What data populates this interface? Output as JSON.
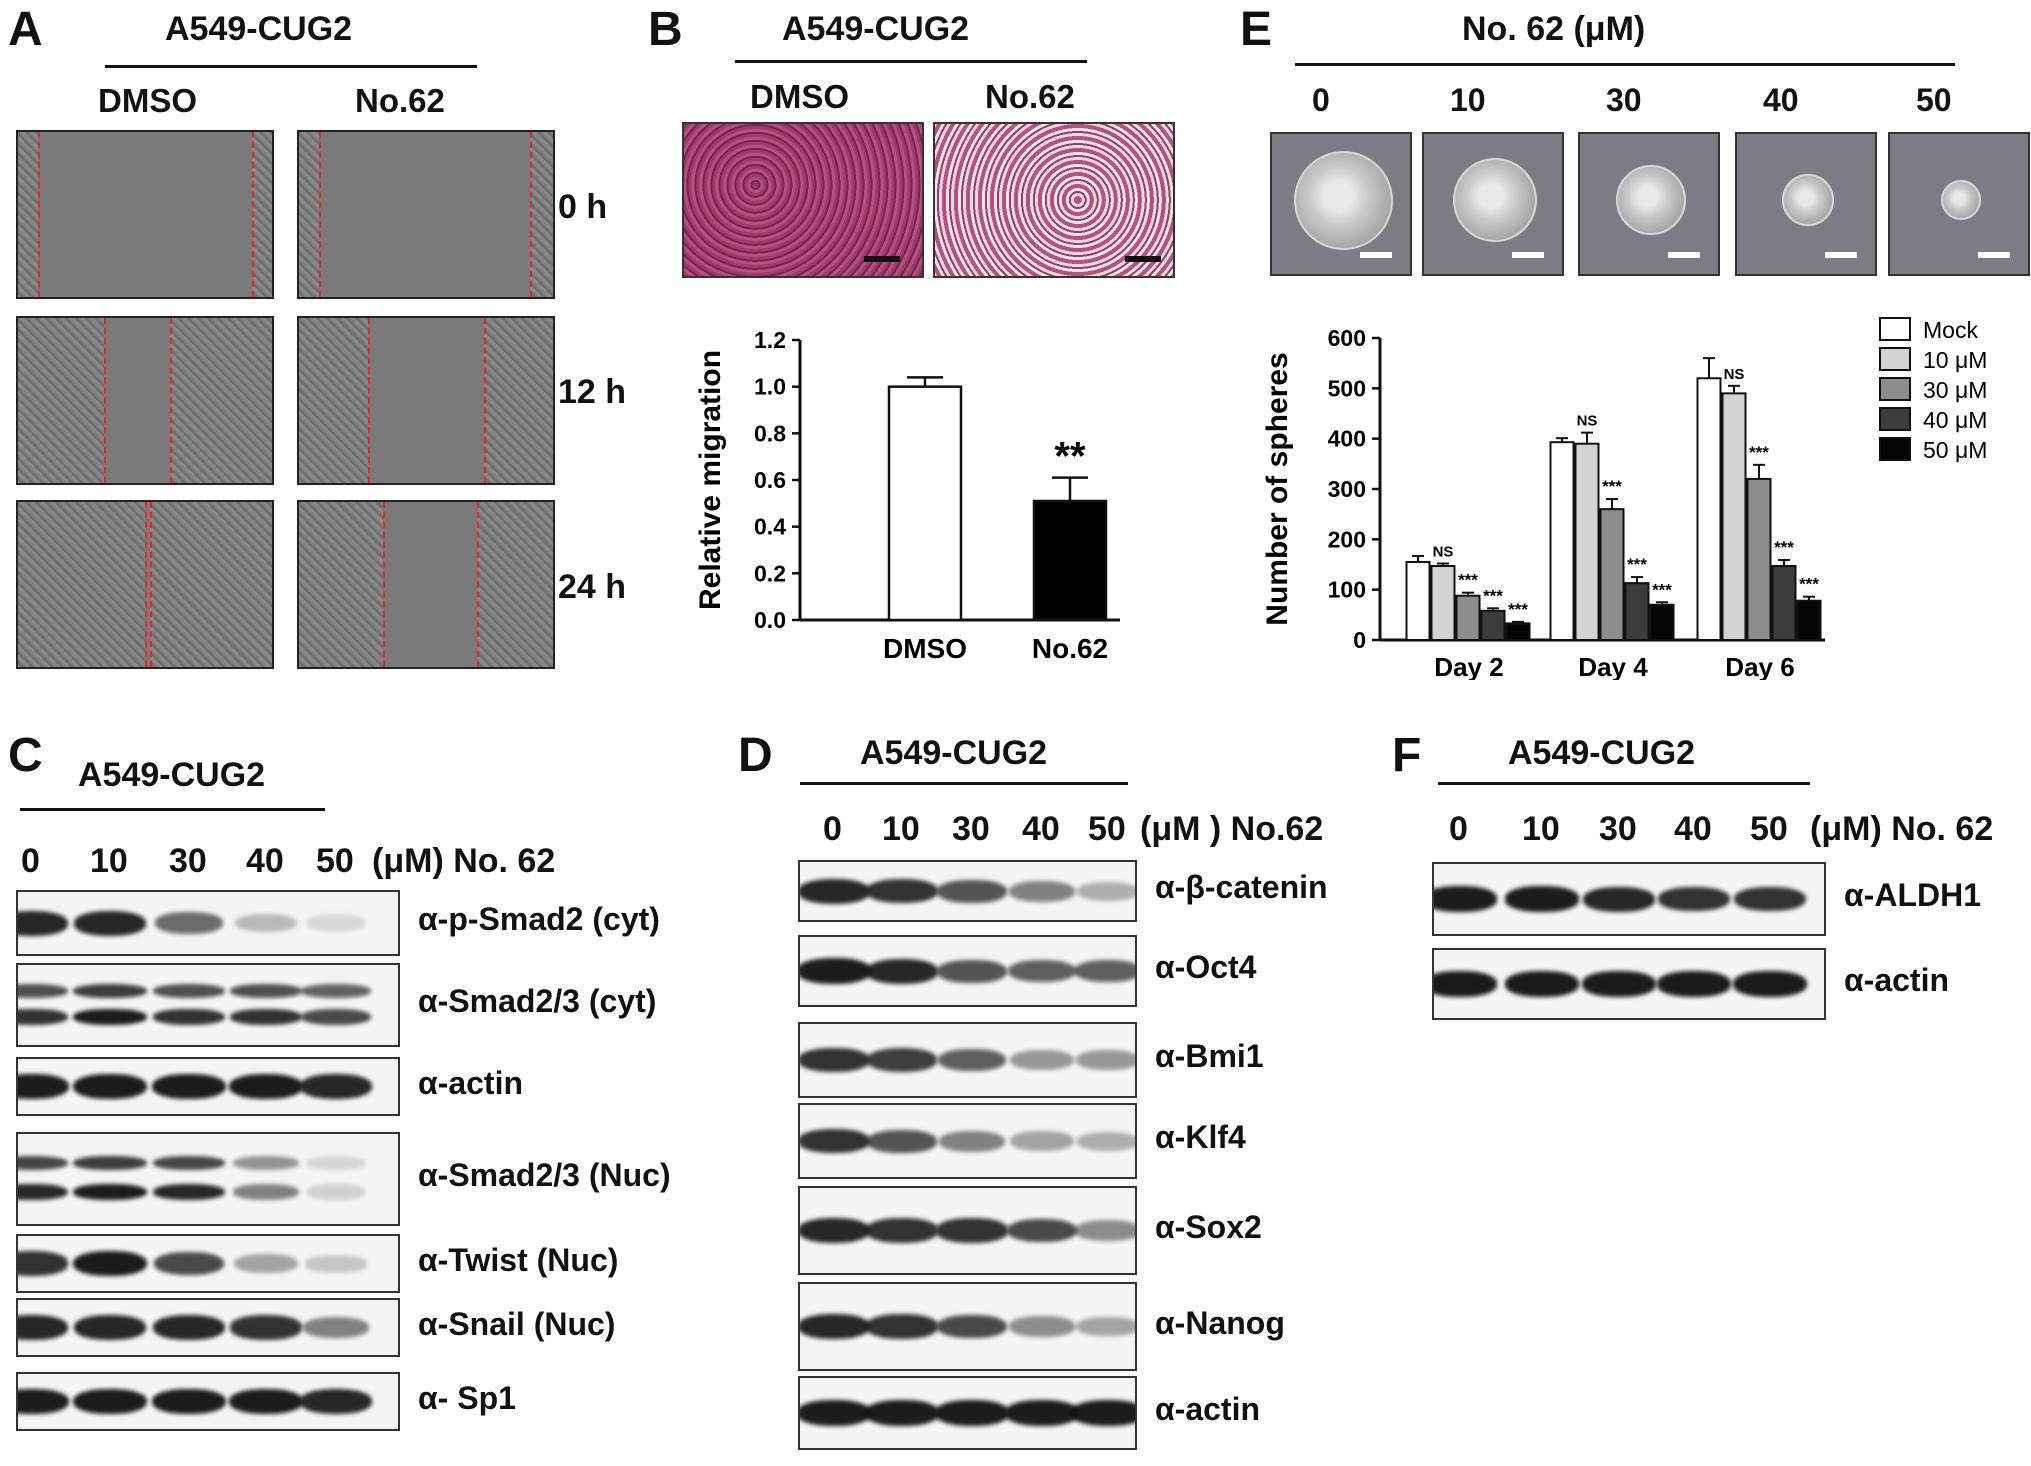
{
  "panels": {
    "A": {
      "letter": "A",
      "header": "A549-CUG2",
      "columns": [
        "DMSO",
        "No.62"
      ],
      "timepoints": [
        "0 h",
        "12 h",
        "24 h"
      ]
    },
    "B": {
      "letter": "B",
      "header": "A549-CUG2",
      "columns": [
        "DMSO",
        "No.62"
      ],
      "significance": "**"
    },
    "C": {
      "letter": "C",
      "header": "A549-CUG2",
      "doses": [
        "0",
        "10",
        "30",
        "40",
        "50"
      ],
      "unit_label": "(μM) No. 62",
      "blots": [
        {
          "label": "α-p-Smad2 (cyt)",
          "intensity": [
            0.9,
            0.9,
            0.6,
            0.25,
            0.12
          ]
        },
        {
          "label": "α-Smad2/3 (cyt)",
          "intensity": [
            0.85,
            0.95,
            0.85,
            0.85,
            0.75
          ]
        },
        {
          "label": "α-actin",
          "intensity": [
            0.95,
            0.95,
            0.95,
            0.95,
            0.9
          ]
        },
        {
          "label": "α-Smad2/3 (Nuc)",
          "intensity": [
            0.9,
            0.95,
            0.9,
            0.5,
            0.15
          ]
        },
        {
          "label": "α-Twist (Nuc)",
          "intensity": [
            0.85,
            0.95,
            0.75,
            0.35,
            0.2
          ]
        },
        {
          "label": "α-Snail (Nuc)",
          "intensity": [
            0.9,
            0.9,
            0.9,
            0.85,
            0.5
          ]
        },
        {
          "label": "α- Sp1",
          "intensity": [
            0.95,
            0.95,
            0.95,
            0.95,
            0.9
          ]
        }
      ]
    },
    "D": {
      "letter": "D",
      "header": "A549-CUG2",
      "doses": [
        "0",
        "10",
        "30",
        "40",
        "50"
      ],
      "unit_label": "(μM ) No.62",
      "blots": [
        {
          "label": "α-β-catenin",
          "intensity": [
            0.9,
            0.85,
            0.7,
            0.5,
            0.3
          ]
        },
        {
          "label": "α-Oct4",
          "intensity": [
            0.95,
            0.9,
            0.7,
            0.65,
            0.65
          ]
        },
        {
          "label": "α-Bmi1",
          "intensity": [
            0.85,
            0.8,
            0.65,
            0.4,
            0.4
          ]
        },
        {
          "label": "α-Klf4",
          "intensity": [
            0.85,
            0.7,
            0.5,
            0.35,
            0.3
          ]
        },
        {
          "label": "α-Sox2",
          "intensity": [
            0.9,
            0.85,
            0.85,
            0.75,
            0.45
          ]
        },
        {
          "label": "α-Nanog",
          "intensity": [
            0.9,
            0.85,
            0.75,
            0.45,
            0.35
          ]
        },
        {
          "label": "α-actin",
          "intensity": [
            0.95,
            0.95,
            0.95,
            0.95,
            0.95
          ]
        }
      ]
    },
    "E": {
      "letter": "E",
      "header": "No. 62 (μM)",
      "doses": [
        "0",
        "10",
        "30",
        "40",
        "50"
      ],
      "sphere_relative_size": [
        1.0,
        0.85,
        0.7,
        0.5,
        0.38
      ]
    },
    "F": {
      "letter": "F",
      "header": "A549-CUG2",
      "doses": [
        "0",
        "10",
        "30",
        "40",
        "50"
      ],
      "unit_label": "(μM) No. 62",
      "blots": [
        {
          "label": "α-ALDH1",
          "intensity": [
            0.95,
            0.95,
            0.9,
            0.85,
            0.85
          ]
        },
        {
          "label": "α-actin",
          "intensity": [
            0.95,
            0.95,
            0.95,
            0.95,
            0.95
          ]
        }
      ]
    }
  },
  "chart_data": [
    {
      "panel": "B",
      "type": "bar",
      "categories": [
        "DMSO",
        "No.62"
      ],
      "values": [
        1.0,
        0.51
      ],
      "errors": [
        0.04,
        0.1
      ],
      "bar_colors": [
        "#ffffff",
        "#000000"
      ],
      "title": "",
      "xlabel": "",
      "ylabel": "Relative migration",
      "ylim": [
        0,
        1.2
      ],
      "yticks": [
        "0.0",
        "0.2",
        "0.4",
        "0.6",
        "0.8",
        "1.0",
        "1.2"
      ],
      "annotations": [
        "**"
      ]
    },
    {
      "panel": "E",
      "type": "bar",
      "categories": [
        "Day 2",
        "Day 4",
        "Day 6"
      ],
      "series": [
        {
          "name": "Mock",
          "color": "#ffffff",
          "values": [
            155,
            393,
            520
          ],
          "errors": [
            12,
            8,
            40
          ],
          "sig": [
            "",
            "",
            ""
          ]
        },
        {
          "name": "10 μM",
          "color": "#d3d3d3",
          "values": [
            147,
            390,
            490
          ],
          "errors": [
            5,
            22,
            15
          ],
          "sig": [
            "NS",
            "NS",
            "NS"
          ]
        },
        {
          "name": "30 μM",
          "color": "#8c8c8c",
          "values": [
            88,
            260,
            320
          ],
          "errors": [
            6,
            20,
            28
          ],
          "sig": [
            "***",
            "***",
            "***"
          ]
        },
        {
          "name": "40 μM",
          "color": "#3c3c3c",
          "values": [
            58,
            113,
            147
          ],
          "errors": [
            5,
            12,
            12
          ],
          "sig": [
            "***",
            "***",
            "***"
          ]
        },
        {
          "name": "50 μM",
          "color": "#050505",
          "values": [
            33,
            70,
            78
          ],
          "errors": [
            3,
            5,
            8
          ],
          "sig": [
            "***",
            "***",
            "***"
          ]
        }
      ],
      "title": "",
      "xlabel": "",
      "ylabel": "Number of spheres",
      "ylim": [
        0,
        600
      ],
      "yticks": [
        "0",
        "100",
        "200",
        "300",
        "400",
        "500",
        "600"
      ],
      "legend_position": "top-right"
    }
  ]
}
